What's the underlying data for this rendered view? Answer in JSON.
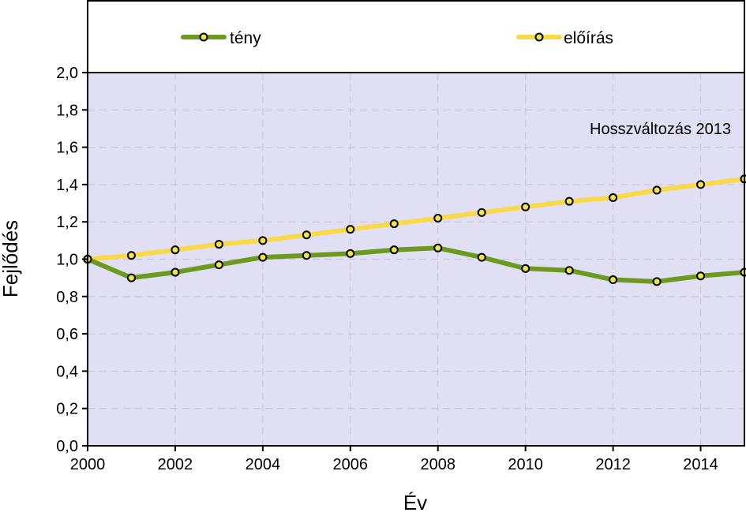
{
  "chart_data": {
    "type": "line",
    "title": "",
    "annotation": "Hosszváltozás 2013",
    "xlabel": "Év",
    "ylabel": "Fejlődés",
    "xlim": [
      2000,
      2015
    ],
    "ylim": [
      0,
      2
    ],
    "x_ticks": [
      2000,
      2002,
      2004,
      2006,
      2008,
      2010,
      2012,
      2014
    ],
    "x_tick_labels": [
      "2000",
      "2002",
      "2004",
      "2006",
      "2008",
      "2010",
      "2012",
      "2014"
    ],
    "y_ticks": [
      0,
      0.2,
      0.4,
      0.6,
      0.8,
      1.0,
      1.2,
      1.4,
      1.6,
      1.8,
      2.0
    ],
    "y_tick_labels": [
      "0,0",
      "0,2",
      "0,4",
      "0,6",
      "0,8",
      "1,0",
      "1,2",
      "1,4",
      "1,6",
      "1,8",
      "2,0"
    ],
    "grid": true,
    "legend_position": "top",
    "plot_background": "#e1dff3",
    "grid_color": "#c4c2d8",
    "marker_fill": "#f3e24a",
    "x": [
      2000,
      2001,
      2002,
      2003,
      2004,
      2005,
      2006,
      2007,
      2008,
      2009,
      2010,
      2011,
      2012,
      2013,
      2014,
      2015
    ],
    "series": [
      {
        "name": "tény",
        "color": "#6c9a1e",
        "values": [
          1.0,
          0.9,
          0.93,
          0.97,
          1.01,
          1.02,
          1.03,
          1.05,
          1.06,
          1.01,
          0.95,
          0.94,
          0.89,
          0.88,
          0.91,
          0.93
        ]
      },
      {
        "name": "előírás",
        "color": "#f8da48",
        "values": [
          1.0,
          1.02,
          1.05,
          1.08,
          1.1,
          1.13,
          1.16,
          1.19,
          1.22,
          1.25,
          1.28,
          1.31,
          1.33,
          1.37,
          1.4,
          1.43
        ]
      }
    ]
  }
}
